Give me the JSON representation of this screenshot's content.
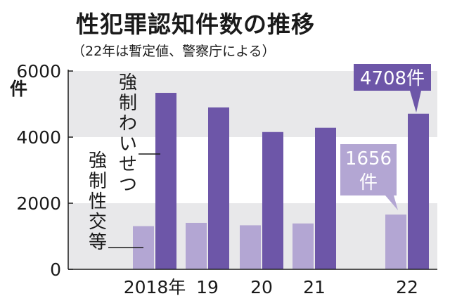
{
  "title": "性犯罪認知件数の推移",
  "subtitle": "（22年は暫定値、警察庁による）",
  "chart_data": {
    "type": "bar",
    "categories": [
      "2018年",
      "19",
      "20",
      "21",
      "22"
    ],
    "series": [
      {
        "name": "強制性交等",
        "values": [
          1307,
          1405,
          1332,
          1388,
          1656
        ]
      },
      {
        "name": "強制わいせつ",
        "values": [
          5340,
          4900,
          4154,
          4283,
          4708
        ]
      }
    ],
    "ylim": [
      0,
      6000
    ],
    "yticks": [
      0,
      2000,
      4000,
      6000
    ],
    "y_unit": "件",
    "grid": "alternating bands",
    "colors": {
      "強制性交等": "#b3a6d3",
      "強制わいせつ": "#6d56a8",
      "band": "#e8e8ea"
    },
    "annotations": [
      {
        "series": "強制わいせつ",
        "category": "22",
        "value_text": "4708",
        "unit_text": "件"
      },
      {
        "series": "強制性交等",
        "category": "22",
        "value_text": "1656",
        "unit_text": "件"
      }
    ]
  }
}
